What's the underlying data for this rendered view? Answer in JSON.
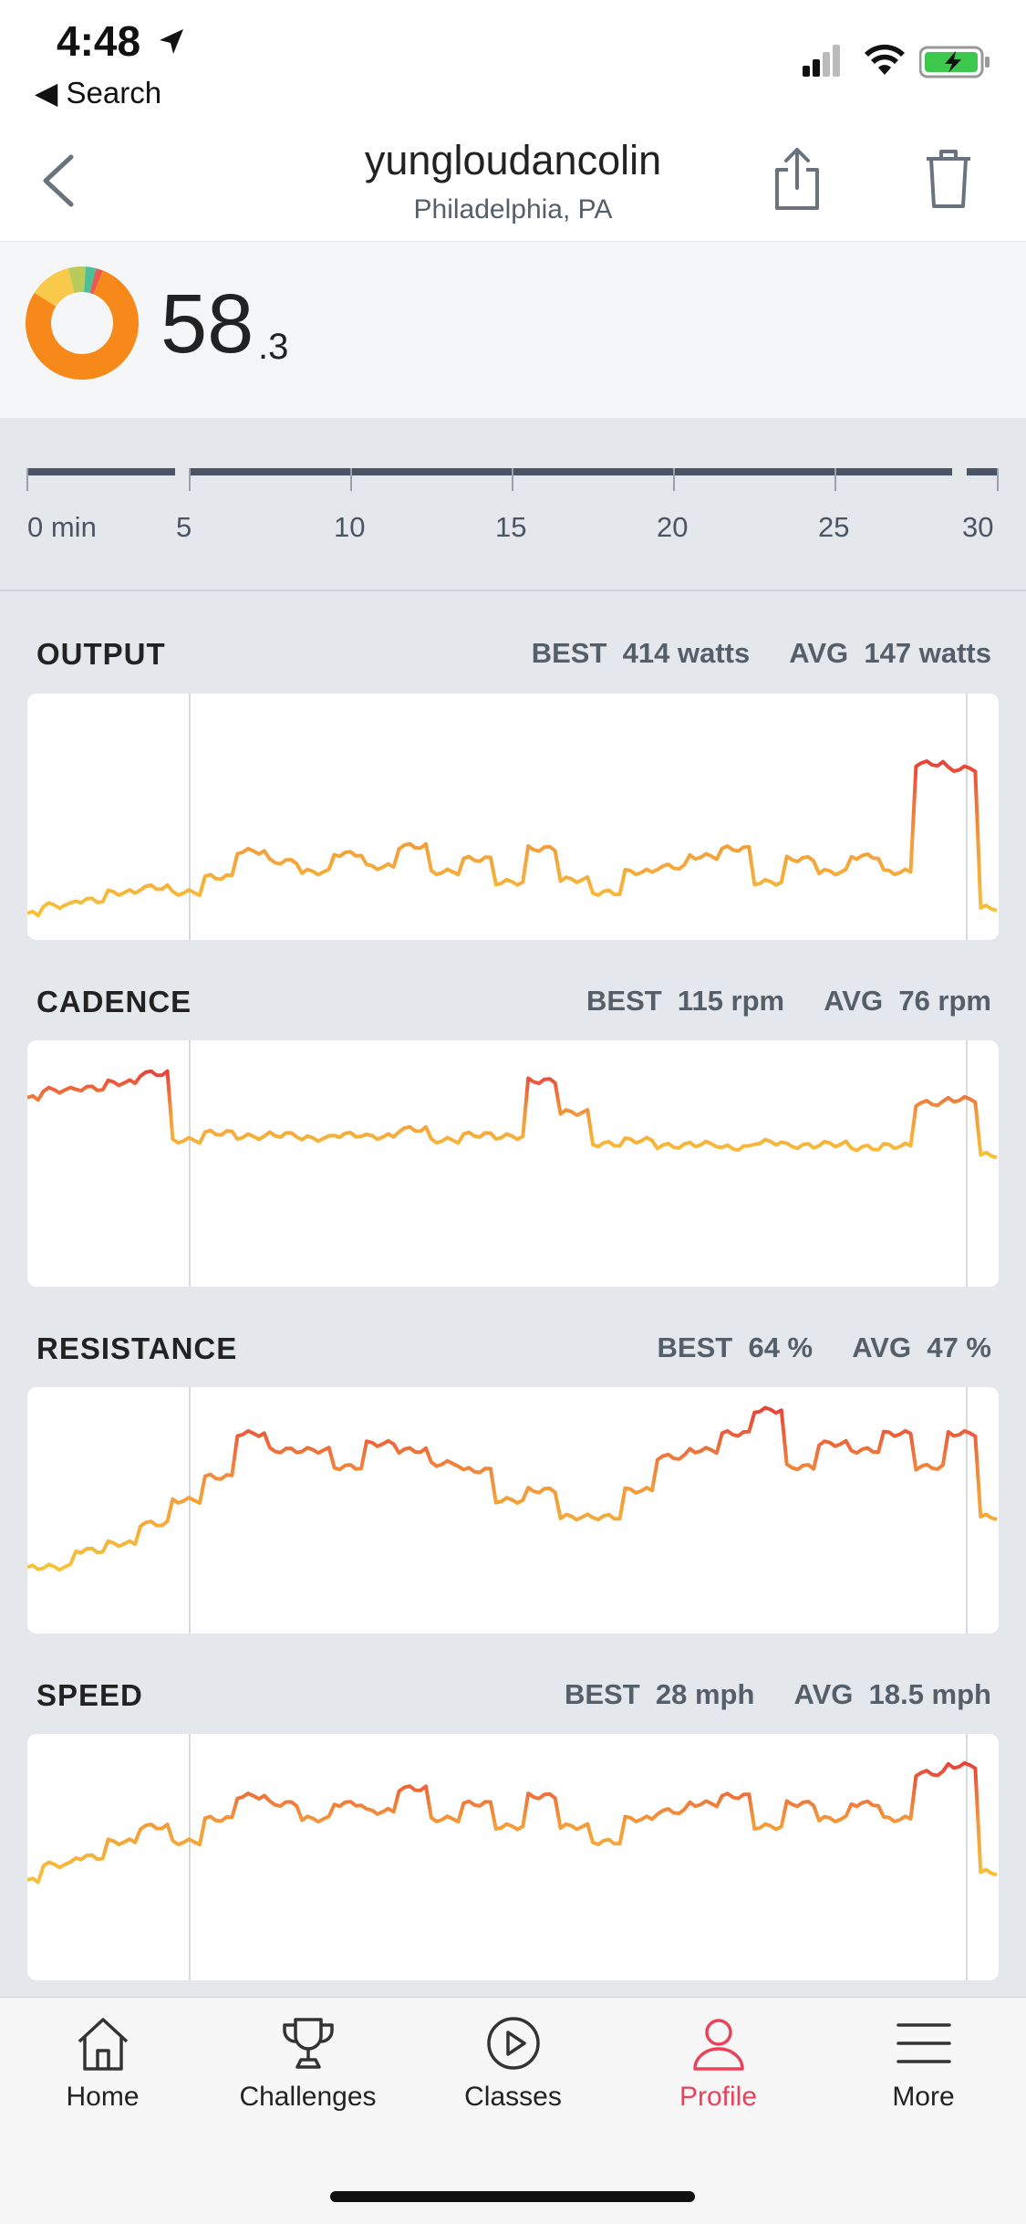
{
  "status_bar": {
    "time": "4:48",
    "back_label": "◀ Search"
  },
  "header": {
    "title": "yungloudancolin",
    "subtitle": "Philadelphia, PA"
  },
  "summary": {
    "score_main": "58",
    "score_decimal": ".3"
  },
  "zone_colors": [
    "#f7891a",
    "#f9c94b",
    "#b9cc5a",
    "#4bbf9a",
    "#e95b4f"
  ],
  "timeline": {
    "ticks": [
      "0 min",
      "5",
      "10",
      "15",
      "20",
      "25",
      "30"
    ]
  },
  "metrics": [
    {
      "label": "OUTPUT",
      "best_label": "BEST",
      "best_value": "414 watts",
      "avg_label": "AVG",
      "avg_value": "147 watts"
    },
    {
      "label": "CADENCE",
      "best_label": "BEST",
      "best_value": "115 rpm",
      "avg_label": "AVG",
      "avg_value": "76 rpm"
    },
    {
      "label": "RESISTANCE",
      "best_label": "BEST",
      "best_value": "64 %",
      "avg_label": "AVG",
      "avg_value": "47 %"
    },
    {
      "label": "SPEED",
      "best_label": "BEST",
      "best_value": "28 mph",
      "avg_label": "AVG",
      "avg_value": "18.5 mph"
    }
  ],
  "chart_data": [
    {
      "type": "line",
      "name": "OUTPUT",
      "x": [
        0,
        1,
        2,
        3,
        4,
        5,
        6,
        7,
        8,
        9,
        10,
        11,
        12,
        13,
        14,
        15,
        16,
        17,
        18,
        19,
        20,
        21,
        22,
        23,
        24,
        25,
        26,
        27,
        28,
        29,
        30
      ],
      "y": [
        20,
        35,
        45,
        60,
        70,
        60,
        90,
        140,
        120,
        100,
        135,
        110,
        150,
        100,
        125,
        80,
        145,
        85,
        60,
        100,
        110,
        130,
        145,
        80,
        125,
        100,
        130,
        100,
        310,
        300,
        30
      ],
      "ymax": 414
    },
    {
      "type": "line",
      "name": "CADENCE",
      "x": [
        0,
        1,
        2,
        3,
        4,
        5,
        6,
        7,
        8,
        9,
        10,
        11,
        12,
        13,
        14,
        15,
        16,
        17,
        18,
        19,
        20,
        21,
        22,
        23,
        24,
        25,
        26,
        27,
        28,
        29,
        30
      ],
      "y": [
        93,
        97,
        98,
        101,
        106,
        70,
        74,
        72,
        73,
        71,
        73,
        72,
        76,
        70,
        73,
        72,
        102,
        85,
        68,
        70,
        67,
        68,
        66,
        69,
        67,
        68,
        66,
        67,
        90,
        92,
        62
      ],
      "ymax": 115
    },
    {
      "type": "line",
      "name": "RESISTANCE",
      "x": [
        0,
        1,
        2,
        3,
        4,
        5,
        6,
        7,
        8,
        9,
        10,
        11,
        12,
        13,
        14,
        15,
        16,
        17,
        18,
        19,
        20,
        21,
        22,
        23,
        24,
        25,
        26,
        27,
        28,
        29,
        30
      ],
      "y": [
        15,
        15,
        20,
        22,
        28,
        35,
        42,
        55,
        50,
        50,
        45,
        52,
        50,
        46,
        44,
        35,
        38,
        30,
        30,
        38,
        48,
        50,
        55,
        62,
        45,
        52,
        50,
        55,
        45,
        55,
        30
      ],
      "ymax": 64
    },
    {
      "type": "line",
      "name": "SPEED",
      "x": [
        0,
        1,
        2,
        3,
        4,
        5,
        6,
        7,
        8,
        9,
        10,
        11,
        12,
        13,
        14,
        15,
        16,
        17,
        18,
        19,
        20,
        21,
        22,
        23,
        24,
        25,
        26,
        27,
        28,
        29,
        30
      ],
      "y": [
        11,
        13,
        14,
        16,
        18,
        16,
        19,
        22,
        21,
        19,
        21,
        20,
        23,
        19,
        21,
        18,
        22,
        18,
        16,
        19,
        20,
        21,
        22,
        18,
        21,
        19,
        21,
        19,
        25,
        26,
        12
      ],
      "ymax": 28
    }
  ],
  "tabs": [
    {
      "label": "Home",
      "icon": "home-icon"
    },
    {
      "label": "Challenges",
      "icon": "trophy-icon"
    },
    {
      "label": "Classes",
      "icon": "play-icon"
    },
    {
      "label": "Profile",
      "icon": "person-icon"
    },
    {
      "label": "More",
      "icon": "menu-icon"
    }
  ],
  "active_tab": "Profile",
  "accent_color": "#e8435a"
}
